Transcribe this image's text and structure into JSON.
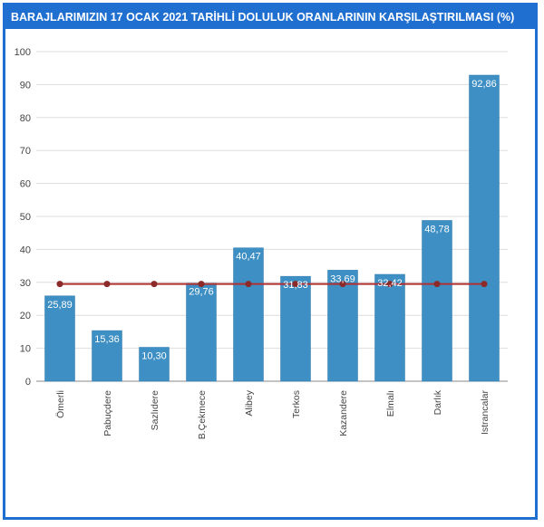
{
  "chart_data": {
    "type": "bar",
    "title": "BARAJLARIMIZIN 17 OCAK 2021 TARİHLİ DOLULUK ORANLARININ KARŞILAŞTIRILMASI (%)",
    "categories": [
      "Ömerli",
      "Pabuçdere",
      "Sazlıdere",
      "B.Çekmece",
      "Alibey",
      "Terkos",
      "Kazandere",
      "Elmalı",
      "Darlık",
      "Istrancalar"
    ],
    "values": [
      25.89,
      15.36,
      10.3,
      29.76,
      40.47,
      31.83,
      33.69,
      32.42,
      48.78,
      92.86
    ],
    "value_labels": [
      "25,89",
      "15,36",
      "10,30",
      "29,76",
      "40,47",
      "31,83",
      "33,69",
      "32,42",
      "48,78",
      "92,86"
    ],
    "average_line": 29.5,
    "ylim": [
      0,
      100
    ],
    "yticks": [
      0,
      10,
      20,
      30,
      40,
      50,
      60,
      70,
      80,
      90,
      100
    ],
    "xlabel": "",
    "ylabel": "",
    "grid": true,
    "colors": {
      "bar": "#3e8fc4",
      "bar_edge": "#2f7bb0",
      "line": "#b03030",
      "marker": "#8c2a2a",
      "grid": "#dddddd",
      "axis": "#888888",
      "frame": "#1f6fd1"
    }
  }
}
